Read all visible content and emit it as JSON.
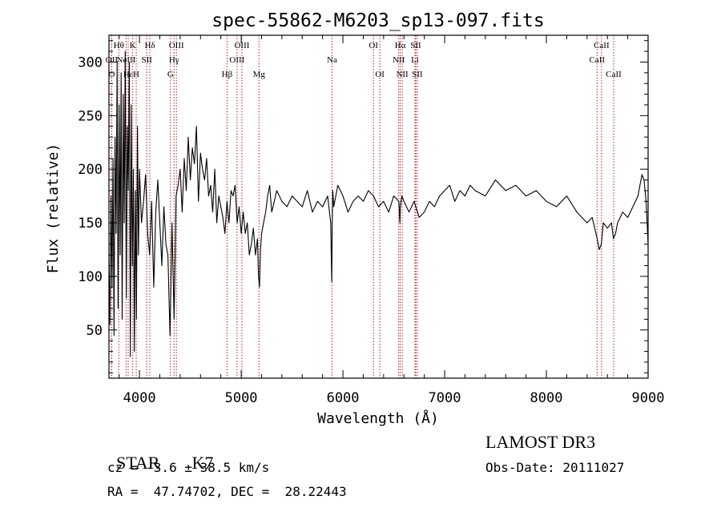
{
  "chart_data": {
    "type": "line",
    "title": "spec-55862-M6203_sp13-097.fits",
    "xlabel": "Wavelength (Å)",
    "ylabel": "Flux (relative)",
    "xlim": [
      3700,
      9000
    ],
    "ylim": [
      5,
      325
    ],
    "x_ticks": [
      4000,
      5000,
      6000,
      7000,
      8000,
      9000
    ],
    "y_ticks": [
      50,
      100,
      150,
      200,
      250,
      300
    ],
    "series": [
      {
        "name": "flux",
        "x": [
          3700,
          3710,
          3720,
          3730,
          3740,
          3750,
          3760,
          3770,
          3780,
          3790,
          3800,
          3810,
          3820,
          3830,
          3840,
          3850,
          3860,
          3870,
          3880,
          3890,
          3900,
          3910,
          3920,
          3930,
          3940,
          3950,
          3960,
          3970,
          3980,
          3990,
          4000,
          4020,
          4040,
          4060,
          4080,
          4100,
          4120,
          4140,
          4160,
          4180,
          4200,
          4220,
          4240,
          4260,
          4280,
          4300,
          4320,
          4340,
          4360,
          4380,
          4400,
          4420,
          4440,
          4460,
          4480,
          4500,
          4520,
          4540,
          4560,
          4580,
          4600,
          4620,
          4640,
          4660,
          4680,
          4700,
          4720,
          4740,
          4760,
          4780,
          4800,
          4820,
          4840,
          4860,
          4880,
          4900,
          4920,
          4940,
          4960,
          4980,
          5000,
          5020,
          5040,
          5060,
          5080,
          5100,
          5120,
          5140,
          5160,
          5170,
          5180,
          5190,
          5200,
          5220,
          5240,
          5260,
          5280,
          5300,
          5350,
          5400,
          5450,
          5500,
          5550,
          5600,
          5650,
          5700,
          5750,
          5800,
          5850,
          5880,
          5890,
          5895,
          5900,
          5910,
          5950,
          6000,
          6050,
          6100,
          6150,
          6200,
          6250,
          6300,
          6350,
          6400,
          6450,
          6500,
          6550,
          6560,
          6565,
          6580,
          6600,
          6650,
          6700,
          6750,
          6800,
          6850,
          6900,
          6950,
          7000,
          7050,
          7100,
          7150,
          7200,
          7250,
          7300,
          7400,
          7500,
          7600,
          7700,
          7800,
          7900,
          8000,
          8100,
          8200,
          8300,
          8400,
          8450,
          8500,
          8520,
          8540,
          8560,
          8600,
          8640,
          8660,
          8680,
          8700,
          8750,
          8800,
          8850,
          8900,
          8920,
          8940,
          8960,
          8980,
          9000
        ],
        "y": [
          110,
          55,
          175,
          90,
          210,
          45,
          230,
          140,
          300,
          70,
          260,
          120,
          290,
          60,
          270,
          150,
          310,
          80,
          240,
          180,
          300,
          25,
          260,
          110,
          200,
          30,
          180,
          60,
          240,
          120,
          200,
          150,
          170,
          195,
          140,
          120,
          170,
          90,
          160,
          190,
          150,
          110,
          165,
          130,
          120,
          45,
          150,
          60,
          175,
          185,
          200,
          160,
          210,
          180,
          230,
          190,
          220,
          205,
          240,
          170,
          215,
          200,
          190,
          210,
          175,
          185,
          160,
          200,
          150,
          175,
          165,
          155,
          140,
          170,
          150,
          180,
          175,
          185,
          150,
          165,
          140,
          160,
          140,
          150,
          120,
          130,
          145,
          120,
          135,
          100,
          90,
          125,
          140,
          150,
          160,
          175,
          185,
          160,
          180,
          170,
          165,
          175,
          170,
          165,
          180,
          160,
          170,
          165,
          175,
          150,
          95,
          150,
          180,
          165,
          185,
          175,
          160,
          170,
          175,
          170,
          180,
          175,
          165,
          170,
          160,
          175,
          170,
          150,
          165,
          175,
          170,
          160,
          170,
          155,
          160,
          170,
          165,
          175,
          180,
          185,
          170,
          180,
          175,
          185,
          180,
          175,
          190,
          180,
          185,
          175,
          180,
          170,
          165,
          175,
          160,
          150,
          155,
          135,
          125,
          130,
          150,
          145,
          150,
          135,
          140,
          150,
          160,
          155,
          165,
          175,
          185,
          195,
          190,
          170,
          130
        ]
      }
    ],
    "lines": [
      {
        "label": "OII",
        "x": 3727,
        "row": 1
      },
      {
        "label": "O",
        "x": 3727,
        "row": 2
      },
      {
        "label": "Hθ",
        "x": 3797,
        "row": 0
      },
      {
        "label": "K",
        "x": 3934,
        "row": 0
      },
      {
        "label": "H",
        "x": 3968,
        "row": 2
      },
      {
        "label": "NeIII",
        "x": 3869,
        "row": 1
      },
      {
        "label": "Hε",
        "x": 3889,
        "row": 2
      },
      {
        "label": "SII",
        "x": 4072,
        "row": 1
      },
      {
        "label": "Hδ",
        "x": 4102,
        "row": 0
      },
      {
        "label": "G",
        "x": 4305,
        "row": 2
      },
      {
        "label": "Hγ",
        "x": 4340,
        "row": 1
      },
      {
        "label": "OIII",
        "x": 4363,
        "row": 0
      },
      {
        "label": "Hβ",
        "x": 4861,
        "row": 2
      },
      {
        "label": "OIII",
        "x": 4959,
        "row": 1
      },
      {
        "label": "OIII",
        "x": 5007,
        "row": 0
      },
      {
        "label": "Mg",
        "x": 5175,
        "row": 2
      },
      {
        "label": "Na",
        "x": 5893,
        "row": 1
      },
      {
        "label": "OI",
        "x": 6300,
        "row": 0
      },
      {
        "label": "OI",
        "x": 6363,
        "row": 2
      },
      {
        "label": "NII",
        "x": 6548,
        "row": 1
      },
      {
        "label": "Hα",
        "x": 6563,
        "row": 0
      },
      {
        "label": "NII",
        "x": 6583,
        "row": 2
      },
      {
        "label": "Li",
        "x": 6708,
        "row": 1
      },
      {
        "label": "SII",
        "x": 6716,
        "row": 0
      },
      {
        "label": "SII",
        "x": 6731,
        "row": 2
      },
      {
        "label": "CaII",
        "x": 8498,
        "row": 1
      },
      {
        "label": "CaII",
        "x": 8542,
        "row": 0
      },
      {
        "label": "CaII",
        "x": 8662,
        "row": 2
      }
    ]
  },
  "info": {
    "class": "STAR",
    "subclass": "K7",
    "cz": "cz = -3.6 ± 38.5 km/s",
    "radec": "RA =  47.74702, DEC =  28.22443",
    "survey": "LAMOST DR3",
    "obs_date": "Obs-Date: 20111027"
  }
}
